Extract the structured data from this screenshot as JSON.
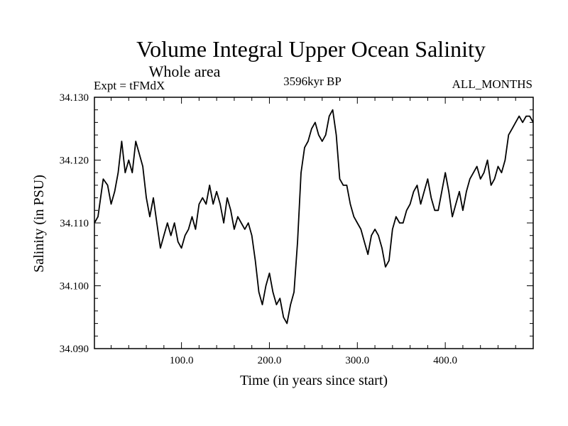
{
  "chart_data": {
    "type": "line",
    "title": "Volume Integral Upper Ocean Salinity",
    "subtitle": "Whole area",
    "experiment": "Expt = tFMdX",
    "period": "3596kyr BP",
    "months": "ALL_MONTHS",
    "xlabel": "Time (in years since start)",
    "ylabel": "Salinity (in PSU)",
    "xlim": [
      1,
      500
    ],
    "ylim": [
      34.09,
      34.13
    ],
    "x_ticks": [
      100,
      200,
      300,
      400
    ],
    "x_tick_labels": [
      "100.0",
      "200.0",
      "300.0",
      "400.0"
    ],
    "y_ticks": [
      34.09,
      34.1,
      34.11,
      34.12,
      34.13
    ],
    "y_tick_labels": [
      "34.090",
      "34.100",
      "34.110",
      "34.120",
      "34.130"
    ],
    "series": [
      {
        "name": "salinity",
        "x": [
          1,
          5,
          8,
          11,
          16,
          20,
          24,
          28,
          32,
          36,
          40,
          44,
          48,
          52,
          56,
          60,
          64,
          68,
          72,
          76,
          80,
          84,
          88,
          92,
          96,
          100,
          104,
          108,
          112,
          116,
          120,
          124,
          128,
          132,
          136,
          140,
          144,
          148,
          152,
          156,
          160,
          164,
          168,
          172,
          176,
          180,
          184,
          188,
          192,
          196,
          200,
          204,
          208,
          212,
          216,
          220,
          224,
          228,
          232,
          236,
          240,
          244,
          248,
          252,
          256,
          260,
          264,
          268,
          272,
          276,
          280,
          284,
          288,
          292,
          296,
          300,
          304,
          308,
          312,
          316,
          320,
          324,
          328,
          332,
          336,
          340,
          344,
          348,
          352,
          356,
          360,
          364,
          368,
          372,
          376,
          380,
          384,
          388,
          392,
          396,
          400,
          404,
          408,
          412,
          416,
          420,
          424,
          428,
          432,
          436,
          440,
          444,
          448,
          452,
          456,
          460,
          464,
          468,
          472,
          476,
          480,
          484,
          488,
          492,
          496,
          500
        ],
        "values": [
          34.11,
          34.111,
          34.114,
          34.117,
          34.116,
          34.113,
          34.115,
          34.118,
          34.123,
          34.118,
          34.12,
          34.118,
          34.123,
          34.121,
          34.119,
          34.114,
          34.111,
          34.114,
          34.11,
          34.106,
          34.108,
          34.11,
          34.108,
          34.11,
          34.107,
          34.106,
          34.108,
          34.109,
          34.111,
          34.109,
          34.113,
          34.114,
          34.113,
          34.116,
          34.113,
          34.115,
          34.113,
          34.11,
          34.114,
          34.112,
          34.109,
          34.111,
          34.11,
          34.109,
          34.11,
          34.108,
          34.104,
          34.099,
          34.097,
          34.1,
          34.102,
          34.099,
          34.097,
          34.098,
          34.095,
          34.094,
          34.097,
          34.099,
          34.107,
          34.118,
          34.122,
          34.123,
          34.125,
          34.126,
          34.124,
          34.123,
          34.124,
          34.127,
          34.128,
          34.124,
          34.117,
          34.116,
          34.116,
          34.113,
          34.111,
          34.11,
          34.109,
          34.107,
          34.105,
          34.108,
          34.109,
          34.108,
          34.106,
          34.103,
          34.104,
          34.109,
          34.111,
          34.11,
          34.11,
          34.112,
          34.113,
          34.115,
          34.116,
          34.113,
          34.115,
          34.117,
          34.114,
          34.112,
          34.112,
          34.115,
          34.118,
          34.115,
          34.111,
          34.113,
          34.115,
          34.112,
          34.115,
          34.117,
          34.118,
          34.119,
          34.117,
          34.118,
          34.12,
          34.116,
          34.117,
          34.119,
          34.118,
          34.12,
          34.124,
          34.125,
          34.126,
          34.127,
          34.126,
          34.127,
          34.127,
          34.126
        ]
      }
    ]
  }
}
